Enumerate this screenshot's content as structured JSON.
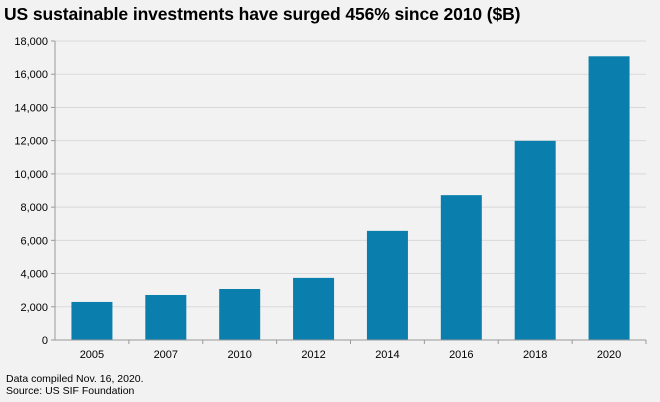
{
  "title": "US sustainable investments have surged 456% since 2010 ($B)",
  "footer": {
    "note": "Data compiled Nov. 16, 2020.",
    "source": "Source: US SIF Foundation"
  },
  "colors": {
    "bar": "#0a7fae",
    "grid": "#d9d9d9",
    "axis": "#9a9a9a",
    "background": "#f2f2f2"
  },
  "chart_data": {
    "type": "bar",
    "title": "US sustainable investments have surged 456% since 2010 ($B)",
    "xlabel": "",
    "ylabel": "",
    "categories": [
      "2005",
      "2007",
      "2010",
      "2012",
      "2014",
      "2016",
      "2018",
      "2020"
    ],
    "values": [
      2290,
      2710,
      3070,
      3740,
      6570,
      8720,
      11990,
      17080
    ],
    "ylim": [
      0,
      18000
    ],
    "yticks": [
      0,
      2000,
      4000,
      6000,
      8000,
      10000,
      12000,
      14000,
      16000,
      18000
    ],
    "ytick_labels": [
      "0",
      "2,000",
      "4,000",
      "6,000",
      "8,000",
      "10,000",
      "12,000",
      "14,000",
      "16,000",
      "18,000"
    ],
    "grid": true,
    "legend": "none"
  }
}
